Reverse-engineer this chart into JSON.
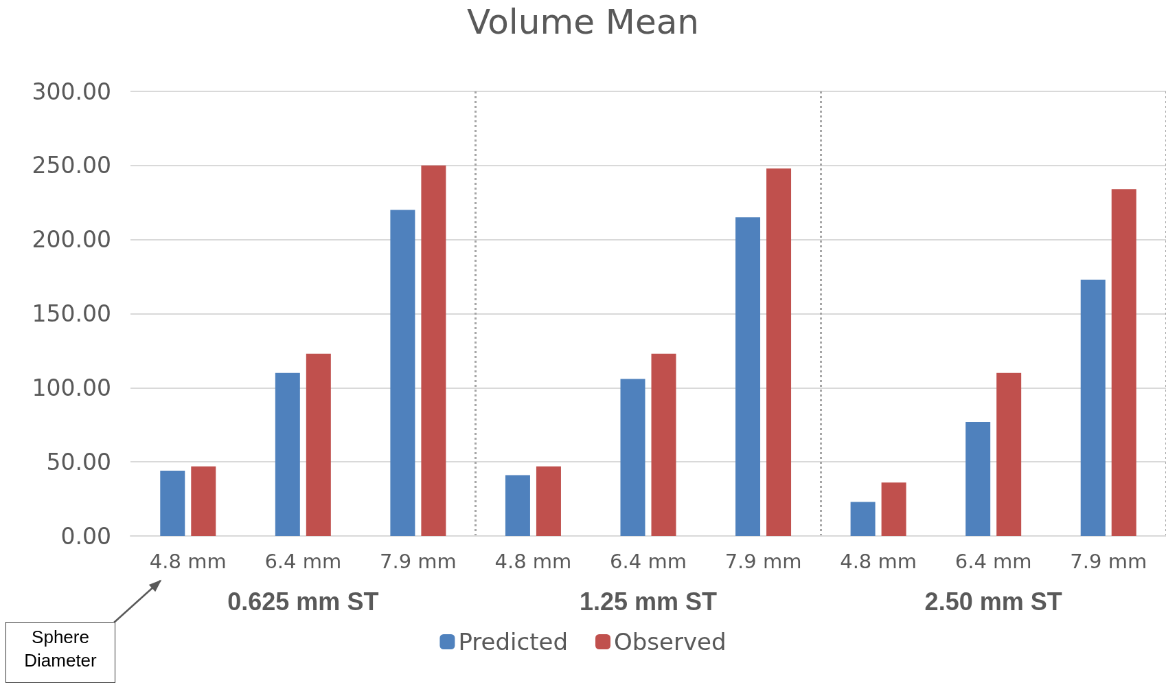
{
  "chart_data": {
    "type": "bar",
    "title": "Volume Mean",
    "categories": [
      "4.8 mm",
      "6.4 mm",
      "7.9 mm",
      "4.8 mm",
      "6.4 mm",
      "7.9 mm",
      "4.8 mm",
      "6.4 mm",
      "7.9 mm"
    ],
    "series": [
      {
        "name": "Predicted",
        "color": "#4f81bd",
        "values": [
          44,
          110,
          220,
          41,
          106,
          215,
          23,
          77,
          173
        ]
      },
      {
        "name": "Observed",
        "color": "#c0504d",
        "values": [
          47,
          123,
          250,
          47,
          123,
          248,
          36,
          110,
          234
        ]
      }
    ],
    "ylim": [
      0,
      300
    ],
    "yticks": [
      {
        "value": 0,
        "label": "0.00"
      },
      {
        "value": 50,
        "label": "50.00"
      },
      {
        "value": 100,
        "label": "100.00"
      },
      {
        "value": 150,
        "label": "150.00"
      },
      {
        "value": 200,
        "label": "200.00"
      },
      {
        "value": 250,
        "label": "250.00"
      },
      {
        "value": 300,
        "label": "300.00"
      }
    ],
    "grid": "y",
    "legend": "bottom",
    "annotations": [
      "0.625 mm ST",
      "1.25 mm ST",
      "2.50 mm ST",
      "Sphere Diameter"
    ]
  }
}
